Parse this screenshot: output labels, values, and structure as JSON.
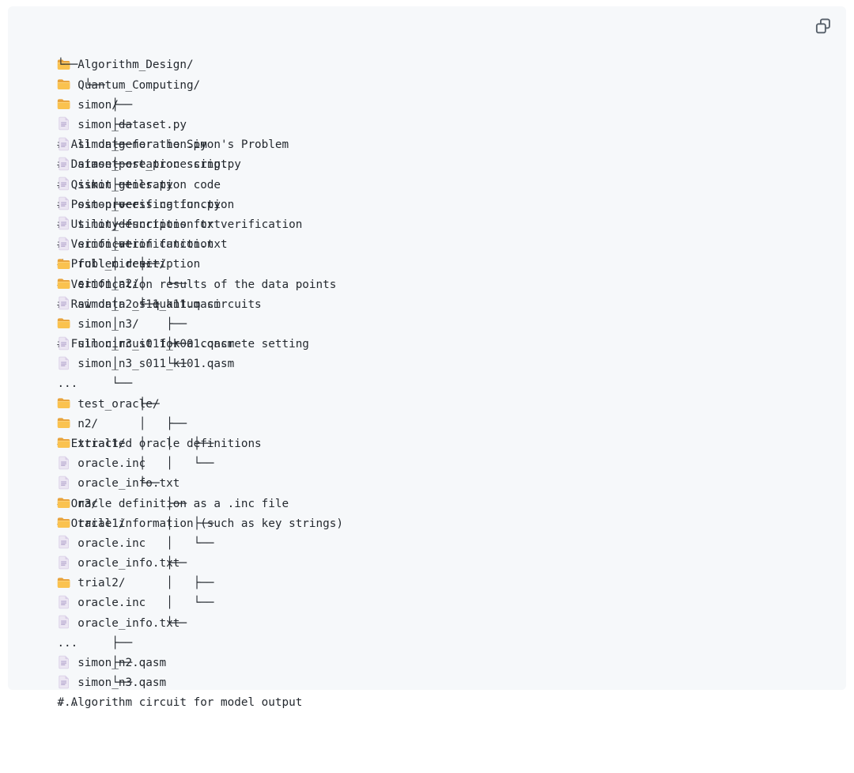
{
  "colors": {
    "page_background": "#ffffff",
    "block_background": "#f6f8fa",
    "text": "#24292f",
    "folder_icon_front": "#fac24f",
    "folder_icon_back": "#e8a33c",
    "file_icon_body": "#ece6f3",
    "file_icon_fold": "#d8cde6",
    "file_icon_lines": "#ab9dc8",
    "copy_icon_stroke": "#57606a"
  },
  "copy_button": {
    "icon": "copy-icon",
    "tooltip": "Copy"
  },
  "tree": {
    "rows": [
      {
        "prefix": "",
        "icon": "folder",
        "name": "Algorithm_Design/",
        "pad": 0,
        "comment": ""
      },
      {
        "prefix": "└── ",
        "icon": "folder",
        "name": "Quantum_Computing/",
        "pad": 0,
        "comment": ""
      },
      {
        "prefix": "    └── ",
        "icon": "folder",
        "name": "simon/",
        "pad": 29,
        "comment": "# All data for the Simon's Problem"
      },
      {
        "prefix": "        ├── ",
        "icon": "file",
        "name": "simon_dataset.py",
        "pad": 15,
        "comment": "# Dataset creation script"
      },
      {
        "prefix": "        ├── ",
        "icon": "file",
        "name": "simon_generation.py",
        "pad": 12,
        "comment": "# Qiskit generation code"
      },
      {
        "prefix": "        ├── ",
        "icon": "file",
        "name": "simon_post_processing.py",
        "pad": 7,
        "comment": "# Post-processing function"
      },
      {
        "prefix": "        ├── ",
        "icon": "file",
        "name": "simon_utils.py",
        "pad": 17,
        "comment": "# Utility functions for verification"
      },
      {
        "prefix": "        ├── ",
        "icon": "file",
        "name": "simon_verification.py",
        "pad": 10,
        "comment": "# Verification function"
      },
      {
        "prefix": "        ├── ",
        "icon": "file",
        "name": "simon_description.txt",
        "pad": 10,
        "comment": "# Problem description"
      },
      {
        "prefix": "        ├── ",
        "icon": "file",
        "name": "simon_verification.txt",
        "pad": 9,
        "comment": "# Verification results of the data points"
      },
      {
        "prefix": "        ├── ",
        "icon": "folder",
        "name": "full_circuit/",
        "pad": 18,
        "comment": "# Raw data of quantum circuits"
      },
      {
        "prefix": "        │   ├── ",
        "icon": "folder",
        "name": "simon_n2/",
        "pad": 0,
        "comment": ""
      },
      {
        "prefix": "        │   │   └── ",
        "icon": "file",
        "name": "simon_n2_s11_k11.qasm",
        "pad": 3,
        "comment": "# Full circuit for a concrete setting"
      },
      {
        "prefix": "        │   └── ",
        "icon": "folder",
        "name": "simon_n3/",
        "pad": 0,
        "comment": ""
      },
      {
        "prefix": "        │       ├── ",
        "icon": "file",
        "name": "simon_n3_s011_k001.qasm",
        "pad": 0,
        "comment": ""
      },
      {
        "prefix": "        │       ├── ",
        "icon": "file",
        "name": "simon_n3_s011_k101.qasm",
        "pad": 0,
        "comment": ""
      },
      {
        "prefix": "        │       └──   ",
        "icon": "",
        "name": "...",
        "pad": 0,
        "comment": ""
      },
      {
        "prefix": "        └── ",
        "icon": "folder",
        "name": "test_oracle/",
        "pad": 22,
        "comment": "# Extracted oracle definitions"
      },
      {
        "prefix": "            ├── ",
        "icon": "folder",
        "name": "n2/",
        "pad": 0,
        "comment": ""
      },
      {
        "prefix": "            │   ├── ",
        "icon": "folder",
        "name": "trial1/",
        "pad": 0,
        "comment": ""
      },
      {
        "prefix": "            │   │   ├── ",
        "icon": "file",
        "name": "oracle.inc",
        "pad": 12,
        "comment": "# Oracle definition as a .inc file"
      },
      {
        "prefix": "            │   │   └── ",
        "icon": "file",
        "name": "oracle_info.txt",
        "pad": 7,
        "comment": "# Oracle information (such as key strings)"
      },
      {
        "prefix": "            └── ",
        "icon": "folder",
        "name": "n3/",
        "pad": 0,
        "comment": ""
      },
      {
        "prefix": "                ├── ",
        "icon": "folder",
        "name": "trial1/",
        "pad": 0,
        "comment": ""
      },
      {
        "prefix": "                │   ├── ",
        "icon": "file",
        "name": "oracle.inc",
        "pad": 0,
        "comment": ""
      },
      {
        "prefix": "                │   └── ",
        "icon": "file",
        "name": "oracle_info.txt",
        "pad": 0,
        "comment": ""
      },
      {
        "prefix": "                ├── ",
        "icon": "folder",
        "name": "trial2/",
        "pad": 0,
        "comment": ""
      },
      {
        "prefix": "                │   ├── ",
        "icon": "file",
        "name": "oracle.inc",
        "pad": 0,
        "comment": ""
      },
      {
        "prefix": "                │   └── ",
        "icon": "file",
        "name": "oracle_info.txt",
        "pad": 0,
        "comment": ""
      },
      {
        "prefix": "                └──   ",
        "icon": "",
        "name": "...",
        "pad": 0,
        "comment": ""
      },
      {
        "prefix": "        ├── ",
        "icon": "file",
        "name": "simon_n2.qasm",
        "pad": 22,
        "comment": "# Algorithm circuit for model output"
      },
      {
        "prefix": "        ├── ",
        "icon": "file",
        "name": "simon_n3.qasm",
        "pad": 0,
        "comment": ""
      },
      {
        "prefix": "        └──   ",
        "icon": "",
        "name": "...",
        "pad": 0,
        "comment": ""
      }
    ]
  }
}
